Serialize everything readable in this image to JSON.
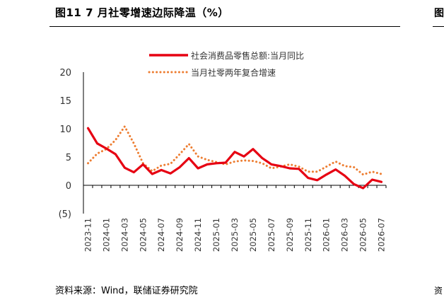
{
  "figure": {
    "title": "图11 7 月社零增速边际降温（%）",
    "source": "资料来源：Wind，联储证券研究院",
    "right_crop_title": "图",
    "right_crop_source": "资"
  },
  "colors": {
    "series_1": "#e60012",
    "series_2": "#ed7d31",
    "negative_tick": "#e60012"
  },
  "chart_data": {
    "type": "line",
    "x": [
      "2023-11",
      "2023-12",
      "2024-01",
      "2024-02",
      "2024-03",
      "2024-04",
      "2024-05",
      "2024-06",
      "2024-07",
      "2024-08",
      "2024-09",
      "2024-10",
      "2024-11",
      "2024-12",
      "2025-01",
      "2025-02",
      "2025-03",
      "2025-04",
      "2025-05",
      "2025-06",
      "2025-07",
      "2025-08",
      "2025-09",
      "2025-10",
      "2025-11",
      "2025-12",
      "2026-01",
      "2026-02",
      "2026-03",
      "2026-04",
      "2026-05",
      "2026-06",
      "2026-07"
    ],
    "x_tick_labels": [
      "2023-11",
      "2024-01",
      "2024-03",
      "2024-05",
      "2024-07",
      "2024-09",
      "2024-11",
      "2025-01",
      "2025-03",
      "2025-05",
      "2025-07",
      "2025-09",
      "2025-11",
      "2026-01",
      "2026-03",
      "2026-05",
      "2026-07"
    ],
    "y_tick_labels": [
      "20",
      "15",
      "10",
      "5",
      "0",
      "(5)"
    ],
    "ylim": [
      -5,
      20
    ],
    "y_ticks": [
      20,
      15,
      10,
      5,
      0,
      -5
    ],
    "legend_position": "top",
    "series": [
      {
        "name": "社会消费品零售总额:当月同比",
        "style": "solid",
        "values": [
          10.1,
          7.4,
          6.5,
          5.5,
          3.1,
          2.3,
          3.7,
          2.0,
          2.7,
          2.1,
          3.2,
          4.8,
          3.0,
          3.7,
          3.9,
          4.0,
          5.9,
          5.1,
          6.4,
          4.8,
          3.7,
          3.4,
          3.0,
          2.9,
          1.3,
          0.9,
          1.9,
          2.8,
          1.7,
          0.2,
          -0.5,
          1.0,
          0.6
        ]
      },
      {
        "name": "当月社零两年复合增速",
        "style": "dotted",
        "values": [
          3.9,
          5.6,
          6.4,
          8.0,
          10.4,
          7.4,
          3.9,
          2.5,
          3.5,
          3.8,
          5.5,
          7.3,
          5.1,
          4.5,
          4.1,
          3.7,
          4.2,
          4.4,
          4.3,
          3.9,
          3.0,
          3.3,
          3.7,
          3.3,
          2.4,
          2.4,
          3.3,
          4.2,
          3.4,
          3.2,
          1.9,
          2.4,
          2.0
        ]
      }
    ]
  }
}
